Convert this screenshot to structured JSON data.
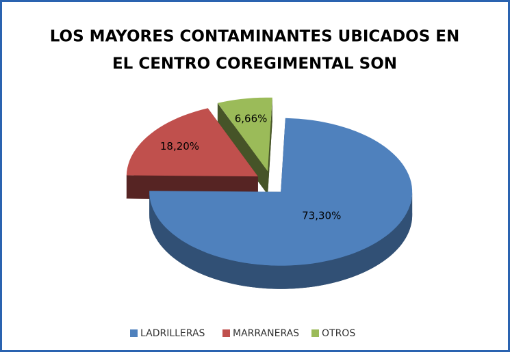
{
  "chart_data": {
    "type": "pie",
    "title": [
      "LOS MAYORES CONTAMINANTES UBICADOS EN",
      "EL CENTRO COREGIMENTAL SON"
    ],
    "categories": [
      "LADRILLERAS",
      "MARRANERAS",
      "OTROS"
    ],
    "values": [
      73.3,
      18.2,
      6.66
    ],
    "value_labels": [
      "73,30%",
      "18,20%",
      "6,66%"
    ],
    "colors": [
      "#4f81bd",
      "#c0504d",
      "#9bbb59"
    ],
    "legend": "bottom"
  }
}
